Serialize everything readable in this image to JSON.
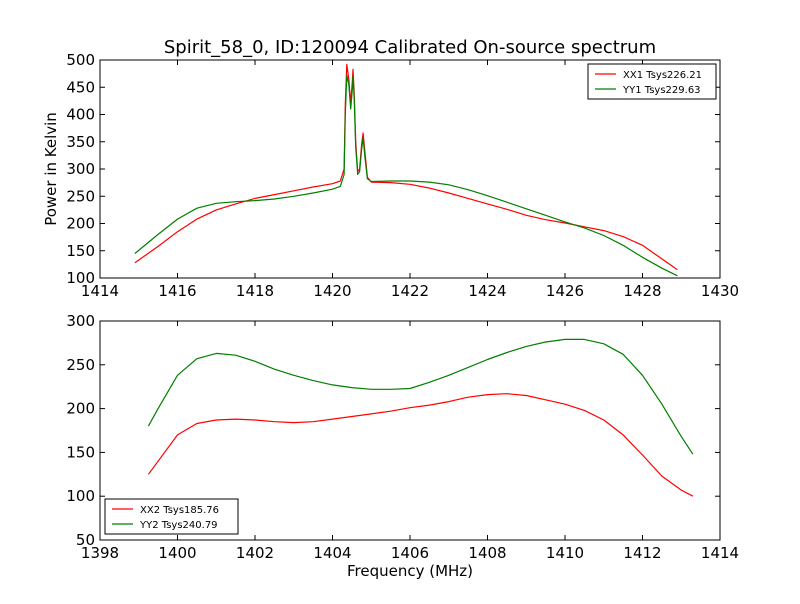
{
  "title": "Spirit_58_0, ID:120094 Calibrated On-source spectrum",
  "colors": {
    "red": "#ff0000",
    "green": "#007f00"
  },
  "chart_data": [
    {
      "type": "line",
      "xlabel": "",
      "ylabel": "Power in Kelvin",
      "xlim": [
        1414,
        1430
      ],
      "ylim": [
        100,
        500
      ],
      "xticks": [
        1414,
        1416,
        1418,
        1420,
        1422,
        1424,
        1426,
        1428,
        1430
      ],
      "yticks": [
        100,
        150,
        200,
        250,
        300,
        350,
        400,
        450,
        500
      ],
      "legend_position": "top-right",
      "series": [
        {
          "name": "XX1 Tsys226.21",
          "color": "red",
          "points": [
            [
              1414.9,
              128
            ],
            [
              1415.5,
              158
            ],
            [
              1416.0,
              185
            ],
            [
              1416.5,
              208
            ],
            [
              1417.0,
              225
            ],
            [
              1417.5,
              236
            ],
            [
              1418.0,
              246
            ],
            [
              1418.5,
              253
            ],
            [
              1419.0,
              260
            ],
            [
              1419.5,
              267
            ],
            [
              1420.0,
              273
            ],
            [
              1420.2,
              278
            ],
            [
              1420.3,
              300
            ],
            [
              1420.33,
              420
            ],
            [
              1420.37,
              492
            ],
            [
              1420.42,
              465
            ],
            [
              1420.47,
              420
            ],
            [
              1420.51,
              460
            ],
            [
              1420.53,
              483
            ],
            [
              1420.56,
              440
            ],
            [
              1420.6,
              350
            ],
            [
              1420.65,
              295
            ],
            [
              1420.7,
              300
            ],
            [
              1420.75,
              345
            ],
            [
              1420.79,
              366
            ],
            [
              1420.84,
              330
            ],
            [
              1420.9,
              285
            ],
            [
              1421.0,
              276
            ],
            [
              1421.5,
              275
            ],
            [
              1422.0,
              272
            ],
            [
              1422.5,
              265
            ],
            [
              1423.0,
              256
            ],
            [
              1423.5,
              246
            ],
            [
              1424.0,
              236
            ],
            [
              1424.5,
              226
            ],
            [
              1425.0,
              215
            ],
            [
              1425.5,
              207
            ],
            [
              1426.0,
              201
            ],
            [
              1426.5,
              194
            ],
            [
              1427.0,
              187
            ],
            [
              1427.5,
              176
            ],
            [
              1428.0,
              160
            ],
            [
              1428.5,
              135
            ],
            [
              1428.9,
              115
            ]
          ]
        },
        {
          "name": "YY1 Tsys229.63",
          "color": "green",
          "points": [
            [
              1414.9,
              145
            ],
            [
              1415.5,
              180
            ],
            [
              1416.0,
              208
            ],
            [
              1416.5,
              228
            ],
            [
              1417.0,
              237
            ],
            [
              1417.5,
              240
            ],
            [
              1418.0,
              242
            ],
            [
              1418.5,
              245
            ],
            [
              1419.0,
              250
            ],
            [
              1419.5,
              256
            ],
            [
              1420.0,
              263
            ],
            [
              1420.2,
              268
            ],
            [
              1420.3,
              290
            ],
            [
              1420.33,
              400
            ],
            [
              1420.37,
              472
            ],
            [
              1420.42,
              455
            ],
            [
              1420.47,
              410
            ],
            [
              1420.51,
              445
            ],
            [
              1420.53,
              470
            ],
            [
              1420.56,
              430
            ],
            [
              1420.6,
              340
            ],
            [
              1420.65,
              290
            ],
            [
              1420.7,
              295
            ],
            [
              1420.75,
              335
            ],
            [
              1420.79,
              358
            ],
            [
              1420.84,
              320
            ],
            [
              1420.9,
              282
            ],
            [
              1421.0,
              277
            ],
            [
              1421.5,
              278
            ],
            [
              1422.0,
              278
            ],
            [
              1422.5,
              276
            ],
            [
              1423.0,
              271
            ],
            [
              1423.5,
              262
            ],
            [
              1424.0,
              251
            ],
            [
              1424.5,
              239
            ],
            [
              1425.0,
              227
            ],
            [
              1425.5,
              215
            ],
            [
              1426.0,
              203
            ],
            [
              1426.5,
              192
            ],
            [
              1427.0,
              178
            ],
            [
              1427.5,
              160
            ],
            [
              1428.0,
              138
            ],
            [
              1428.5,
              118
            ],
            [
              1428.9,
              104
            ]
          ]
        }
      ]
    },
    {
      "type": "line",
      "xlabel": "Frequency (MHz)",
      "ylabel": "",
      "xlim": [
        1398,
        1414
      ],
      "ylim": [
        50,
        300
      ],
      "xticks": [
        1398,
        1400,
        1402,
        1404,
        1406,
        1408,
        1410,
        1412,
        1414
      ],
      "yticks": [
        50,
        100,
        150,
        200,
        250,
        300
      ],
      "legend_position": "bottom-left",
      "series": [
        {
          "name": "XX2 Tsys185.76",
          "color": "red",
          "points": [
            [
              1399.25,
              125
            ],
            [
              1399.5,
              140
            ],
            [
              1400.0,
              170
            ],
            [
              1400.5,
              183
            ],
            [
              1401.0,
              187
            ],
            [
              1401.5,
              188
            ],
            [
              1402.0,
              187
            ],
            [
              1402.5,
              185
            ],
            [
              1403.0,
              184
            ],
            [
              1403.5,
              185
            ],
            [
              1404.0,
              188
            ],
            [
              1404.5,
              191
            ],
            [
              1405.0,
              194
            ],
            [
              1405.5,
              197
            ],
            [
              1406.0,
              201
            ],
            [
              1406.5,
              204
            ],
            [
              1407.0,
              208
            ],
            [
              1407.5,
              213
            ],
            [
              1408.0,
              216
            ],
            [
              1408.5,
              217
            ],
            [
              1409.0,
              215
            ],
            [
              1409.5,
              210
            ],
            [
              1410.0,
              205
            ],
            [
              1410.5,
              198
            ],
            [
              1411.0,
              187
            ],
            [
              1411.5,
              170
            ],
            [
              1412.0,
              147
            ],
            [
              1412.5,
              123
            ],
            [
              1413.0,
              107
            ],
            [
              1413.3,
              100
            ]
          ]
        },
        {
          "name": "YY2 Tsys240.79",
          "color": "green",
          "points": [
            [
              1399.25,
              180
            ],
            [
              1399.5,
              200
            ],
            [
              1400.0,
              238
            ],
            [
              1400.5,
              257
            ],
            [
              1401.0,
              263
            ],
            [
              1401.5,
              261
            ],
            [
              1402.0,
              254
            ],
            [
              1402.5,
              245
            ],
            [
              1403.0,
              238
            ],
            [
              1403.5,
              232
            ],
            [
              1404.0,
              227
            ],
            [
              1404.5,
              224
            ],
            [
              1405.0,
              222
            ],
            [
              1405.5,
              222
            ],
            [
              1406.0,
              223
            ],
            [
              1406.5,
              230
            ],
            [
              1407.0,
              238
            ],
            [
              1407.5,
              247
            ],
            [
              1408.0,
              256
            ],
            [
              1408.5,
              264
            ],
            [
              1409.0,
              271
            ],
            [
              1409.5,
              276
            ],
            [
              1410.0,
              279
            ],
            [
              1410.5,
              279
            ],
            [
              1411.0,
              274
            ],
            [
              1411.5,
              262
            ],
            [
              1412.0,
              238
            ],
            [
              1412.5,
              205
            ],
            [
              1413.0,
              168
            ],
            [
              1413.3,
              148
            ]
          ]
        }
      ]
    }
  ]
}
